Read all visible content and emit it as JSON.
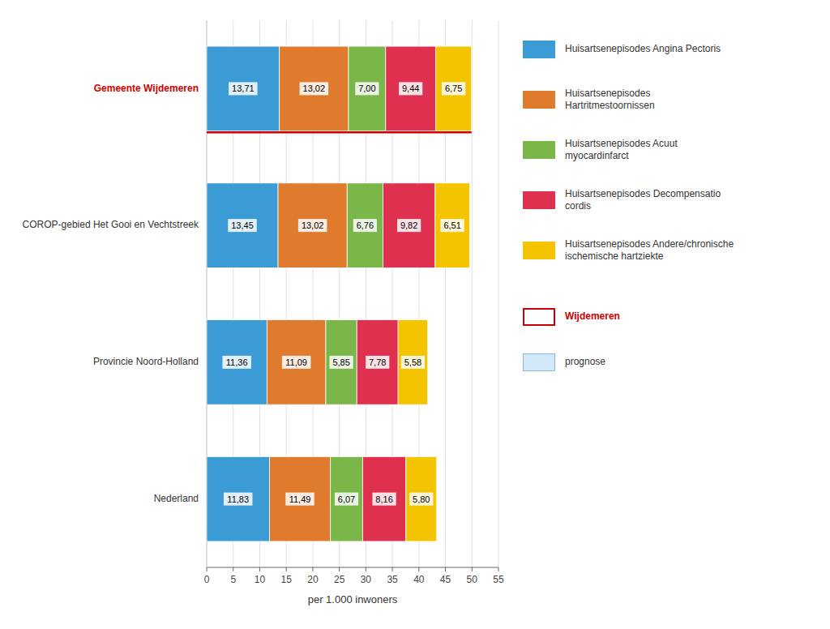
{
  "chart_data": {
    "type": "bar",
    "orientation": "horizontal",
    "stacked": true,
    "data_labels": true,
    "categories": [
      "Gemeente Wijdemeren",
      "COROP-gebied Het Gooi en Vechtstreek",
      "Provincie Noord-Holland",
      "Nederland"
    ],
    "series": [
      {
        "name": "Huisartsenepisodes Angina Pectoris",
        "color": "#3A9BD5",
        "values": [
          13.71,
          13.45,
          11.36,
          11.83
        ],
        "value_labels": [
          "13,71",
          "13,45",
          "11,36",
          "11,83"
        ]
      },
      {
        "name": "Huisartsenepisodes\nHartritmestoornissen",
        "color": "#E07B2E",
        "values": [
          13.02,
          13.02,
          11.09,
          11.49
        ],
        "value_labels": [
          "13,02",
          "13,02",
          "11,09",
          "11,49"
        ]
      },
      {
        "name": "Huisartsenepisodes Acuut\nmyocardinfarct",
        "color": "#7AB648",
        "values": [
          7.0,
          6.76,
          5.85,
          6.07
        ],
        "value_labels": [
          "7,00",
          "6,76",
          "5,85",
          "6,07"
        ]
      },
      {
        "name": "Huisartsenepisodes Decompensatio\ncordis",
        "color": "#E03050",
        "values": [
          9.44,
          9.82,
          7.78,
          8.16
        ],
        "value_labels": [
          "9,44",
          "9,82",
          "7,78",
          "8,16"
        ]
      },
      {
        "name": "Huisartsenepisodes Andere/chronische\nischemische hartziekte",
        "color": "#F5C400",
        "values": [
          6.75,
          6.51,
          5.58,
          5.8
        ],
        "value_labels": [
          "6,75",
          "6,51",
          "5,58",
          "5,80"
        ]
      }
    ],
    "xlabel": "per 1.000 inwoners",
    "xlim": [
      0,
      55
    ],
    "xticks": [
      0,
      5,
      10,
      15,
      20,
      25,
      30,
      35,
      40,
      45,
      50,
      55
    ],
    "grid": true,
    "legend": "right",
    "annotations": [
      {
        "text": "Wijdemeren",
        "color": "#cc0000"
      },
      {
        "text": "prognose"
      }
    ]
  }
}
